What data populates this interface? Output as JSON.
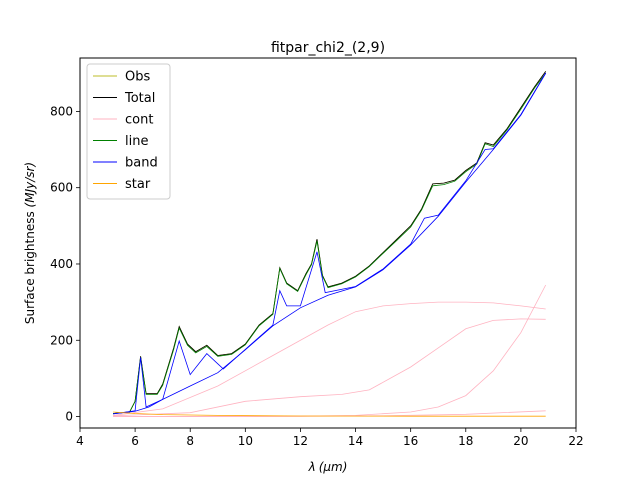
{
  "chart_data": {
    "type": "line",
    "title": "fitpar_chi2_(2,9)",
    "xlabel": "λ (μm)",
    "xlabel_parts": {
      "sym": "λ",
      "unit": "(μm)"
    },
    "ylabel": "Surface brightness (MJy/sr)",
    "ylabel_parts": {
      "text": "Surface brightness ",
      "unit": "(MJy/sr)"
    },
    "xlim": [
      4,
      22
    ],
    "ylim": [
      -30,
      940
    ],
    "xticks": [
      4,
      6,
      8,
      10,
      12,
      14,
      16,
      18,
      20,
      22
    ],
    "yticks": [
      0,
      200,
      400,
      600,
      800
    ],
    "grid": false,
    "legend_position": "top-left",
    "legend": [
      {
        "label": "Obs",
        "color": "#bdbd2a"
      },
      {
        "label": "Total",
        "color": "#000000"
      },
      {
        "label": "cont",
        "color": "#ffb3c1"
      },
      {
        "label": "line",
        "color": "#008000"
      },
      {
        "label": "band",
        "color": "#0000ff"
      },
      {
        "label": "star",
        "color": "#ffa500"
      }
    ],
    "series": [
      {
        "name": "Obs",
        "color": "#bdbd2a",
        "points": [
          [
            5.2,
            8
          ],
          [
            5.8,
            12
          ],
          [
            6.0,
            40
          ],
          [
            6.2,
            158
          ],
          [
            6.4,
            60
          ],
          [
            6.8,
            60
          ],
          [
            7.0,
            85
          ],
          [
            7.4,
            180
          ],
          [
            7.6,
            236
          ],
          [
            7.9,
            190
          ],
          [
            8.2,
            170
          ],
          [
            8.6,
            187
          ],
          [
            9.0,
            160
          ],
          [
            9.5,
            165
          ],
          [
            10.0,
            190
          ],
          [
            10.5,
            240
          ],
          [
            11.0,
            270
          ],
          [
            11.25,
            390
          ],
          [
            11.5,
            350
          ],
          [
            11.9,
            330
          ],
          [
            12.2,
            375
          ],
          [
            12.4,
            400
          ],
          [
            12.6,
            465
          ],
          [
            12.8,
            370
          ],
          [
            13.0,
            340
          ],
          [
            13.5,
            350
          ],
          [
            14.0,
            368
          ],
          [
            14.5,
            395
          ],
          [
            15.0,
            430
          ],
          [
            15.5,
            465
          ],
          [
            16.0,
            500
          ],
          [
            16.4,
            545
          ],
          [
            16.8,
            610
          ],
          [
            17.2,
            612
          ],
          [
            17.6,
            620
          ],
          [
            18.0,
            645
          ],
          [
            18.4,
            665
          ],
          [
            18.7,
            718
          ],
          [
            19.0,
            712
          ],
          [
            19.5,
            755
          ],
          [
            20.0,
            810
          ],
          [
            20.5,
            865
          ],
          [
            20.9,
            905
          ]
        ]
      },
      {
        "name": "Total",
        "color": "#000000",
        "points": [
          [
            5.2,
            8
          ],
          [
            5.8,
            12
          ],
          [
            6.0,
            40
          ],
          [
            6.2,
            158
          ],
          [
            6.4,
            60
          ],
          [
            6.8,
            60
          ],
          [
            7.0,
            85
          ],
          [
            7.4,
            180
          ],
          [
            7.6,
            236
          ],
          [
            7.9,
            190
          ],
          [
            8.2,
            170
          ],
          [
            8.6,
            187
          ],
          [
            9.0,
            160
          ],
          [
            9.5,
            165
          ],
          [
            10.0,
            190
          ],
          [
            10.5,
            240
          ],
          [
            11.0,
            270
          ],
          [
            11.25,
            390
          ],
          [
            11.5,
            350
          ],
          [
            11.9,
            330
          ],
          [
            12.2,
            375
          ],
          [
            12.4,
            400
          ],
          [
            12.6,
            465
          ],
          [
            12.8,
            370
          ],
          [
            13.0,
            340
          ],
          [
            13.5,
            350
          ],
          [
            14.0,
            368
          ],
          [
            14.5,
            395
          ],
          [
            15.0,
            430
          ],
          [
            15.5,
            465
          ],
          [
            16.0,
            500
          ],
          [
            16.4,
            545
          ],
          [
            16.8,
            610
          ],
          [
            17.2,
            612
          ],
          [
            17.6,
            620
          ],
          [
            18.0,
            645
          ],
          [
            18.4,
            665
          ],
          [
            18.7,
            718
          ],
          [
            19.0,
            712
          ],
          [
            19.5,
            755
          ],
          [
            20.0,
            810
          ],
          [
            20.5,
            865
          ],
          [
            20.9,
            905
          ]
        ]
      },
      {
        "name": "cont",
        "color": "#ffb3c1",
        "points": [
          [
            5.2,
            2
          ],
          [
            8.0,
            10
          ],
          [
            10.0,
            40
          ],
          [
            12.0,
            52
          ],
          [
            13.5,
            58
          ],
          [
            14.5,
            70
          ],
          [
            16.0,
            130
          ],
          [
            17.0,
            180
          ],
          [
            18.0,
            230
          ],
          [
            19.0,
            252
          ],
          [
            20.0,
            256
          ],
          [
            20.9,
            255
          ]
        ]
      },
      {
        "name": "cont",
        "color": "#ffb3c1",
        "points": [
          [
            5.2,
            3
          ],
          [
            7.0,
            20
          ],
          [
            9.0,
            80
          ],
          [
            11.0,
            160
          ],
          [
            13.0,
            240
          ],
          [
            14.0,
            275
          ],
          [
            15.0,
            290
          ],
          [
            16.0,
            296
          ],
          [
            17.0,
            300
          ],
          [
            18.0,
            300
          ],
          [
            19.0,
            298
          ],
          [
            20.0,
            290
          ],
          [
            20.9,
            282
          ]
        ]
      },
      {
        "name": "cont",
        "color": "#ffb3c1",
        "points": [
          [
            5.2,
            0
          ],
          [
            12.0,
            1
          ],
          [
            14.0,
            3
          ],
          [
            16.0,
            12
          ],
          [
            17.0,
            25
          ],
          [
            18.0,
            55
          ],
          [
            19.0,
            120
          ],
          [
            20.0,
            220
          ],
          [
            20.9,
            345
          ]
        ]
      },
      {
        "name": "cont",
        "color": "#ffb3c1",
        "points": [
          [
            5.2,
            0
          ],
          [
            10.0,
            0
          ],
          [
            15.0,
            2
          ],
          [
            18.0,
            6
          ],
          [
            20.9,
            15
          ]
        ]
      },
      {
        "name": "line",
        "color": "#008000",
        "points": [
          [
            5.2,
            8
          ],
          [
            5.8,
            12
          ],
          [
            6.0,
            40
          ],
          [
            6.2,
            155
          ],
          [
            6.4,
            58
          ],
          [
            6.8,
            58
          ],
          [
            7.0,
            82
          ],
          [
            7.4,
            176
          ],
          [
            7.6,
            232
          ],
          [
            7.9,
            187
          ],
          [
            8.2,
            167
          ],
          [
            8.6,
            184
          ],
          [
            9.0,
            158
          ],
          [
            9.5,
            163
          ],
          [
            10.0,
            188
          ],
          [
            10.5,
            238
          ],
          [
            11.0,
            268
          ],
          [
            11.25,
            388
          ],
          [
            11.5,
            348
          ],
          [
            11.9,
            328
          ],
          [
            12.2,
            372
          ],
          [
            12.4,
            398
          ],
          [
            12.6,
            460
          ],
          [
            12.8,
            368
          ],
          [
            13.0,
            338
          ],
          [
            13.5,
            348
          ],
          [
            14.0,
            366
          ],
          [
            14.5,
            393
          ],
          [
            15.0,
            428
          ],
          [
            15.5,
            462
          ],
          [
            16.0,
            497
          ],
          [
            16.4,
            542
          ],
          [
            16.8,
            605
          ],
          [
            17.2,
            608
          ],
          [
            17.6,
            617
          ],
          [
            18.0,
            642
          ],
          [
            18.4,
            662
          ],
          [
            18.7,
            715
          ],
          [
            19.0,
            708
          ],
          [
            19.5,
            752
          ],
          [
            20.0,
            806
          ],
          [
            20.5,
            862
          ],
          [
            20.9,
            900
          ]
        ]
      },
      {
        "name": "band",
        "color": "#0000ff",
        "points": [
          [
            5.2,
            7
          ],
          [
            6.0,
            14
          ],
          [
            6.5,
            25
          ],
          [
            7.0,
            45
          ],
          [
            8.0,
            80
          ],
          [
            9.0,
            115
          ],
          [
            10.0,
            175
          ],
          [
            11.0,
            238
          ],
          [
            12.0,
            285
          ],
          [
            13.0,
            318
          ],
          [
            14.0,
            340
          ],
          [
            15.0,
            385
          ],
          [
            16.0,
            450
          ],
          [
            17.0,
            525
          ],
          [
            18.0,
            615
          ],
          [
            19.0,
            700
          ],
          [
            20.0,
            790
          ],
          [
            20.9,
            900
          ]
        ]
      },
      {
        "name": "band",
        "color": "#0000ff",
        "points": [
          [
            5.2,
            7
          ],
          [
            6.0,
            15
          ],
          [
            6.2,
            155
          ],
          [
            6.4,
            25
          ],
          [
            7.0,
            45
          ],
          [
            7.6,
            198
          ],
          [
            8.0,
            110
          ],
          [
            8.6,
            165
          ],
          [
            9.2,
            125
          ],
          [
            10.0,
            176
          ],
          [
            11.0,
            240
          ],
          [
            11.25,
            330
          ],
          [
            11.5,
            290
          ],
          [
            12.0,
            290
          ],
          [
            12.6,
            432
          ],
          [
            12.9,
            325
          ],
          [
            14.0,
            341
          ],
          [
            15.0,
            387
          ],
          [
            16.0,
            452
          ],
          [
            16.5,
            520
          ],
          [
            17.0,
            528
          ],
          [
            18.0,
            618
          ],
          [
            18.7,
            700
          ],
          [
            19.0,
            702
          ],
          [
            20.0,
            792
          ],
          [
            20.9,
            901
          ]
        ]
      },
      {
        "name": "star",
        "color": "#ffa500",
        "points": [
          [
            5.2,
            12
          ],
          [
            6.0,
            8
          ],
          [
            7.0,
            5
          ],
          [
            9.0,
            3
          ],
          [
            12.0,
            1.5
          ],
          [
            16.0,
            1
          ],
          [
            20.9,
            1
          ]
        ]
      }
    ]
  }
}
